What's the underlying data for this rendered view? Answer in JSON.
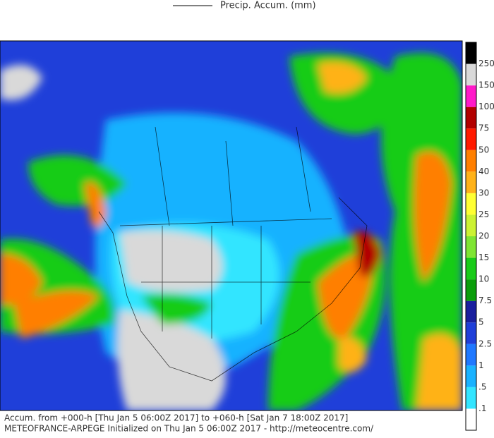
{
  "title": "Precip. Accum. (mm)",
  "legend": {
    "colors": [
      "#ffffff",
      "#33e5ff",
      "#19b2ff",
      "#1f78ff",
      "#1f3fd9",
      "#1a1f9e",
      "#0a9e0a",
      "#19cc19",
      "#7fe533",
      "#ccf233",
      "#ffff33",
      "#ffb219",
      "#ff7f00",
      "#ff1a00",
      "#b20000",
      "#ff19c9",
      "#d9d9d9",
      "#000000"
    ],
    "labels": [
      ".1",
      ".5",
      "1",
      "2.5",
      "5",
      "7.5",
      "10",
      "15",
      "20",
      "25",
      "30",
      "40",
      "50",
      "75",
      "100",
      "150",
      "250"
    ]
  },
  "footer": {
    "line1": "Accum. from +000-h [Thu Jan 5 06:00Z 2017] to +060-h [Sat Jan 7 18:00Z 2017]",
    "line2": "METEOFRANCE-ARPEGE Initialized on Thu Jan 5 06:00Z 2017 - http://meteocentre.com/"
  }
}
